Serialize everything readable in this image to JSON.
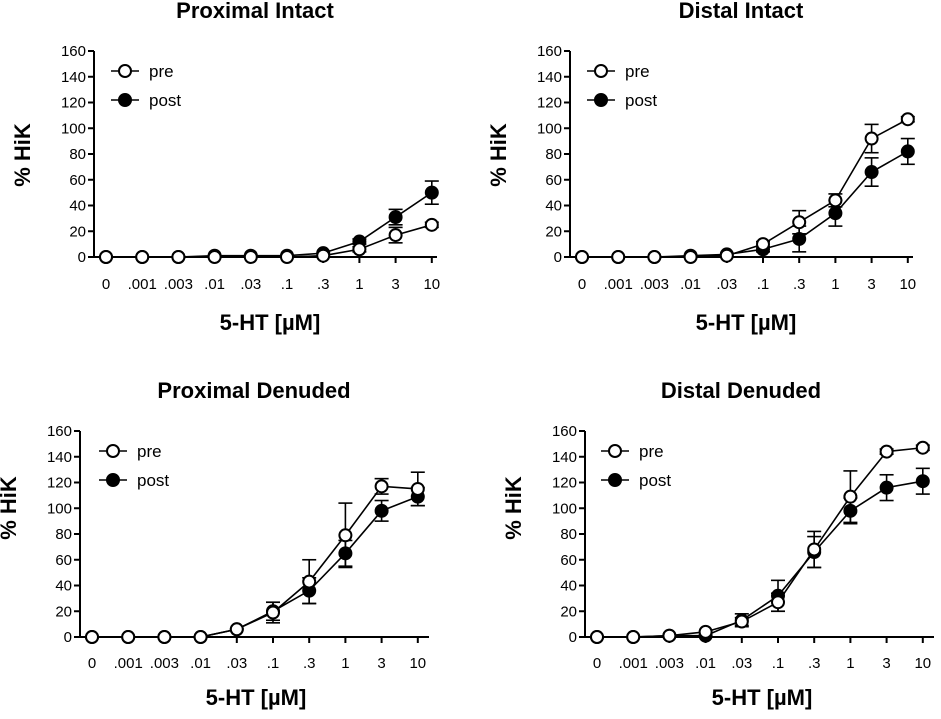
{
  "chart_data": [
    {
      "type": "line",
      "title": "Proximal Intact",
      "xlabel": "5-HT [µM]",
      "ylabel": "% HiK",
      "categories": [
        "0",
        ".001",
        ".003",
        ".01",
        ".03",
        ".1",
        ".3",
        "1",
        "3",
        "10"
      ],
      "ylim": [
        0,
        160
      ],
      "yticks": [
        0,
        20,
        40,
        60,
        80,
        100,
        120,
        140,
        160
      ],
      "legend": "top-left",
      "series": [
        {
          "name": "pre",
          "marker": "open-circle",
          "values": [
            0,
            0,
            0,
            0,
            0,
            0,
            1,
            6,
            17,
            25
          ],
          "errors": [
            0,
            0,
            0,
            1,
            0,
            0,
            1,
            2,
            6,
            2
          ]
        },
        {
          "name": "post",
          "marker": "filled-circle",
          "values": [
            0,
            0,
            0,
            1,
            1,
            1,
            3,
            12,
            31,
            50
          ],
          "errors": [
            0,
            0,
            0,
            1,
            0,
            0,
            1,
            2,
            6,
            9
          ]
        }
      ]
    },
    {
      "type": "line",
      "title": "Distal Intact",
      "xlabel": "5-HT [µM]",
      "ylabel": "% HiK",
      "categories": [
        "0",
        ".001",
        ".003",
        ".01",
        ".03",
        ".1",
        ".3",
        "1",
        "3",
        "10"
      ],
      "ylim": [
        0,
        160
      ],
      "yticks": [
        0,
        20,
        40,
        60,
        80,
        100,
        120,
        140,
        160
      ],
      "legend": "top-left",
      "series": [
        {
          "name": "pre",
          "marker": "open-circle",
          "values": [
            0,
            0,
            0,
            0,
            1,
            10,
            27,
            44,
            92,
            107
          ],
          "errors": [
            0,
            0,
            0,
            0,
            1,
            2,
            9,
            5,
            11,
            2
          ]
        },
        {
          "name": "post",
          "marker": "filled-circle",
          "values": [
            0,
            0,
            0,
            1,
            2,
            6,
            14,
            34,
            66,
            82
          ],
          "errors": [
            0,
            0,
            0,
            1,
            1,
            2,
            10,
            10,
            11,
            10
          ]
        }
      ]
    },
    {
      "type": "line",
      "title": "Proximal Denuded",
      "xlabel": "5-HT [µM]",
      "ylabel": "% HiK",
      "categories": [
        "0",
        ".001",
        ".003",
        ".01",
        ".03",
        ".1",
        ".3",
        "1",
        "3",
        "10"
      ],
      "ylim": [
        0,
        160
      ],
      "yticks": [
        0,
        20,
        40,
        60,
        80,
        100,
        120,
        140,
        160
      ],
      "legend": "top-left",
      "series": [
        {
          "name": "pre",
          "marker": "open-circle",
          "values": [
            0,
            0,
            0,
            0,
            6,
            19,
            43,
            79,
            117,
            115
          ],
          "errors": [
            0,
            0,
            0,
            0,
            1,
            8,
            17,
            25,
            6,
            13
          ]
        },
        {
          "name": "post",
          "marker": "filled-circle",
          "values": [
            0,
            0,
            0,
            0,
            6,
            20,
            36,
            65,
            98,
            109
          ],
          "errors": [
            0,
            0,
            0,
            0,
            1,
            7,
            10,
            10,
            8,
            7
          ]
        }
      ]
    },
    {
      "type": "line",
      "title": "Distal Denuded",
      "xlabel": "5-HT [µM]",
      "ylabel": "% HiK",
      "categories": [
        "0",
        ".001",
        ".003",
        ".01",
        ".03",
        ".1",
        ".3",
        "1",
        "3",
        "10"
      ],
      "ylim": [
        0,
        160
      ],
      "yticks": [
        0,
        20,
        40,
        60,
        80,
        100,
        120,
        140,
        160
      ],
      "legend": "top-left",
      "series": [
        {
          "name": "pre",
          "marker": "open-circle",
          "values": [
            0,
            0,
            1,
            4,
            12,
            27,
            68,
            109,
            144,
            147
          ],
          "errors": [
            0,
            0,
            1,
            1,
            3,
            7,
            14,
            20,
            2,
            2
          ]
        },
        {
          "name": "post",
          "marker": "filled-circle",
          "values": [
            0,
            0,
            1,
            1,
            13,
            32,
            66,
            98,
            116,
            121
          ],
          "errors": [
            0,
            0,
            1,
            1,
            5,
            12,
            12,
            10,
            10,
            10
          ]
        }
      ]
    }
  ]
}
